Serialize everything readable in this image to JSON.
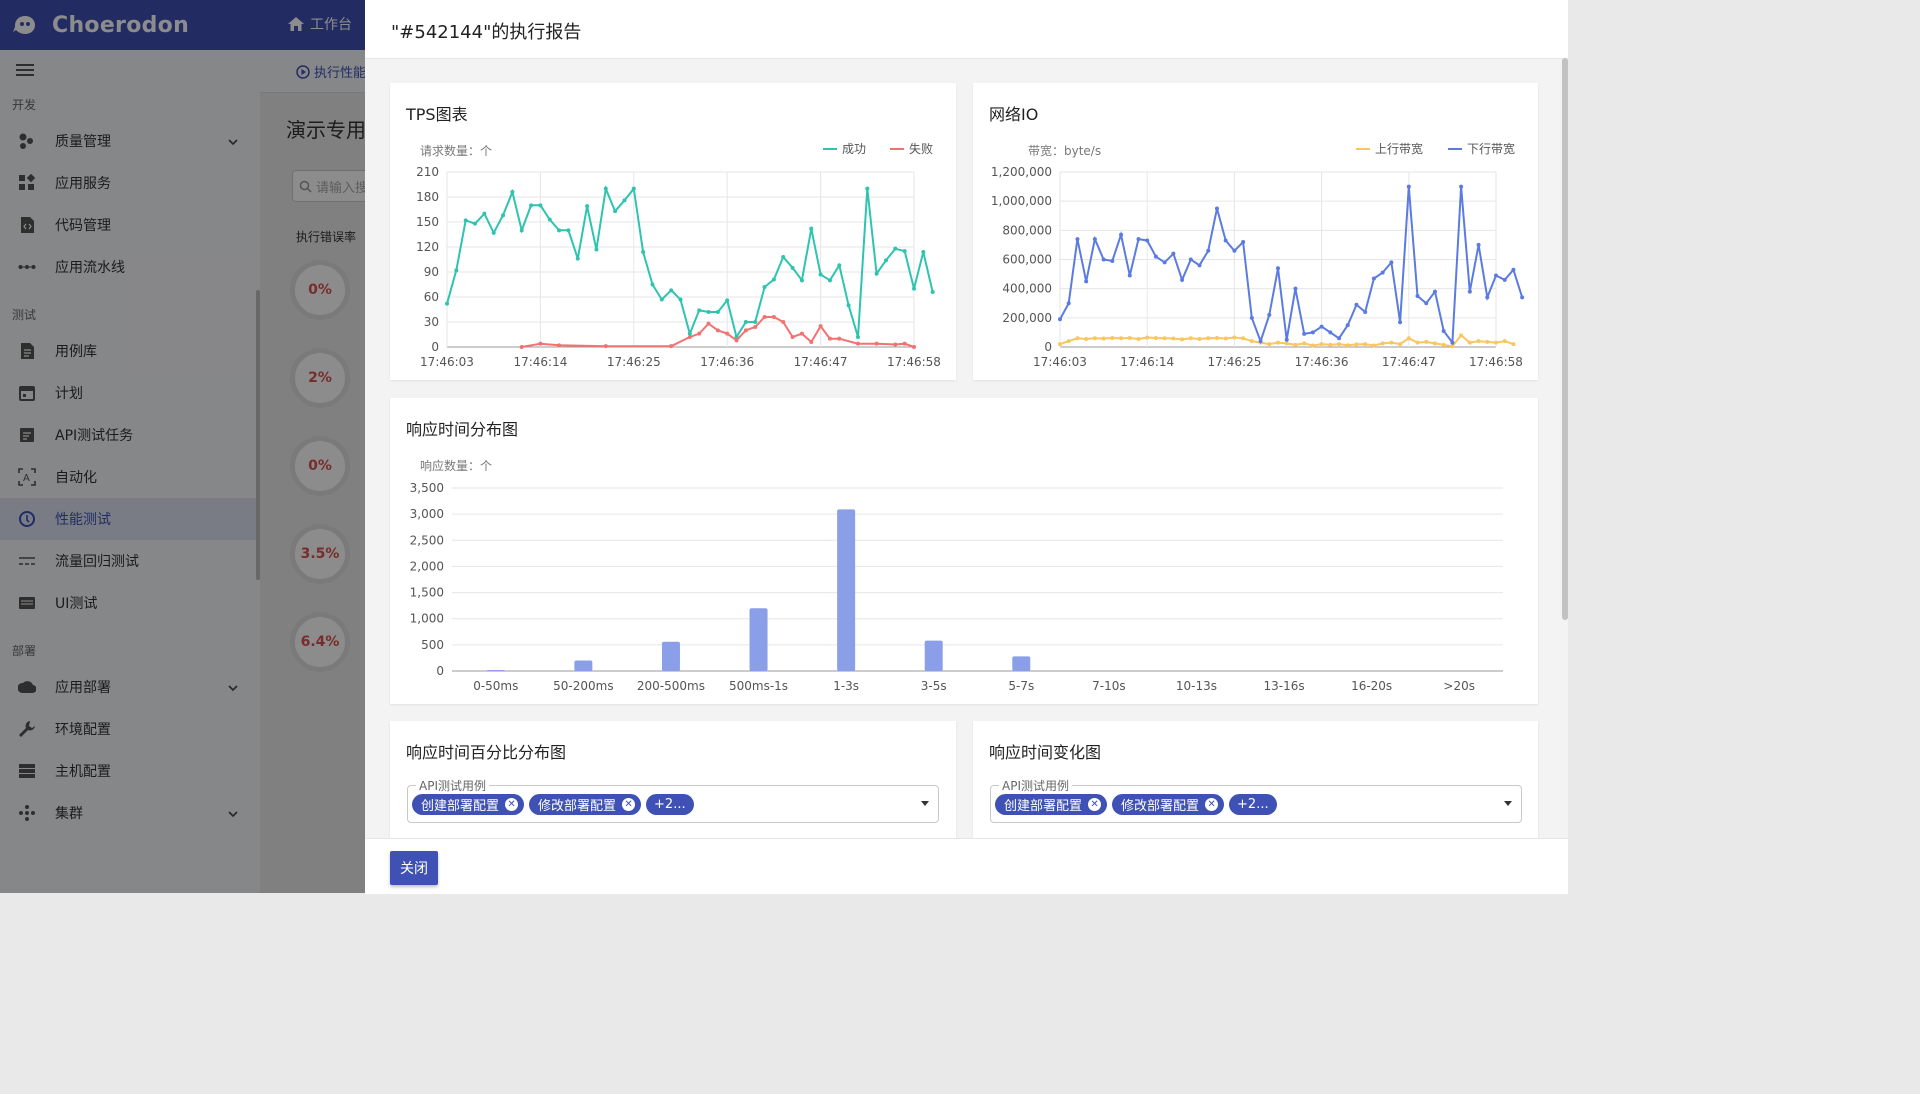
{
  "app": {
    "name": "Choerodon"
  },
  "topbar": {
    "home_label": "工作台"
  },
  "breadcrumb": {
    "label": "执行性能"
  },
  "sidebar": {
    "sections": [
      {
        "title": "开发",
        "items": [
          {
            "label": "质量管理",
            "icon": "quality-icon",
            "chevron": true
          },
          {
            "label": "应用服务",
            "icon": "app-service-icon"
          },
          {
            "label": "代码管理",
            "icon": "code-icon"
          },
          {
            "label": "应用流水线",
            "icon": "pipeline-icon"
          }
        ]
      },
      {
        "title": "测试",
        "items": [
          {
            "label": "用例库",
            "icon": "case-library-icon"
          },
          {
            "label": "计划",
            "icon": "calendar-icon"
          },
          {
            "label": "API测试任务",
            "icon": "api-task-icon"
          },
          {
            "label": "自动化",
            "icon": "automation-icon"
          },
          {
            "label": "性能测试",
            "icon": "performance-icon",
            "active": true
          },
          {
            "label": "流量回归测试",
            "icon": "traffic-icon"
          },
          {
            "label": "UI测试",
            "icon": "ui-test-icon"
          }
        ]
      },
      {
        "title": "部署",
        "items": [
          {
            "label": "应用部署",
            "icon": "deploy-icon",
            "chevron": true
          },
          {
            "label": "环境配置",
            "icon": "wrench-icon"
          },
          {
            "label": "主机配置",
            "icon": "host-icon"
          },
          {
            "label": "集群",
            "icon": "cluster-icon",
            "chevron": true
          }
        ]
      }
    ]
  },
  "background_page": {
    "title": "演示专用",
    "search_placeholder": "请输入搜",
    "column_label": "执行错误率",
    "rates": [
      "0%",
      "2%",
      "0%",
      "3.5%",
      "6.4%"
    ]
  },
  "modal": {
    "title": "\"#542144\"的执行报告",
    "close_label": "关闭"
  },
  "colors": {
    "primary": "#3f51b5",
    "success": "#2ec4b0",
    "fail": "#f27272",
    "up": "#fbc560",
    "down": "#5b7be0",
    "bar": "#8a9fe8"
  },
  "chart_data": [
    {
      "type": "line",
      "title": "TPS图表",
      "unit_label": "请求数量：个",
      "x_ticks": [
        "17:46:03",
        "17:46:14",
        "17:46:25",
        "17:46:36",
        "17:46:47",
        "17:46:58"
      ],
      "ylim": [
        0,
        210
      ],
      "y_ticks": [
        0,
        30,
        60,
        90,
        120,
        150,
        180,
        210
      ],
      "series": [
        {
          "name": "成功",
          "color": "#2ec4b0",
          "points": [
            [
              0,
              52
            ],
            [
              1,
              92
            ],
            [
              2,
              152
            ],
            [
              3,
              148
            ],
            [
              4,
              160
            ],
            [
              5,
              137
            ],
            [
              6,
              158
            ],
            [
              7,
              186
            ],
            [
              8,
              140
            ],
            [
              9,
              170
            ],
            [
              10,
              170
            ],
            [
              11,
              153
            ],
            [
              12,
              140
            ],
            [
              13,
              140
            ],
            [
              14,
              106
            ],
            [
              15,
              169
            ],
            [
              16,
              117
            ],
            [
              17,
              190
            ],
            [
              18,
              163
            ],
            [
              19,
              176
            ],
            [
              20,
              190
            ],
            [
              21,
              114
            ],
            [
              22,
              75
            ],
            [
              23,
              57
            ],
            [
              24,
              68
            ],
            [
              25,
              57
            ],
            [
              26,
              16
            ],
            [
              27,
              44
            ],
            [
              28,
              42
            ],
            [
              29,
              42
            ],
            [
              30,
              56
            ],
            [
              31,
              12
            ],
            [
              32,
              30
            ],
            [
              33,
              30
            ],
            [
              34,
              72
            ],
            [
              35,
              81
            ],
            [
              36,
              108
            ],
            [
              37,
              95
            ],
            [
              38,
              80
            ],
            [
              39,
              142
            ],
            [
              40,
              87
            ],
            [
              41,
              80
            ],
            [
              42,
              98
            ],
            [
              43,
              50
            ],
            [
              44,
              12
            ],
            [
              45,
              190
            ],
            [
              46,
              88
            ],
            [
              47,
              104
            ],
            [
              48,
              118
            ],
            [
              49,
              115
            ],
            [
              50,
              70
            ],
            [
              51,
              114
            ],
            [
              52,
              66
            ]
          ]
        },
        {
          "name": "失败",
          "color": "#f27272",
          "points": [
            [
              8,
              0
            ],
            [
              10,
              4
            ],
            [
              12,
              2
            ],
            [
              17,
              1
            ],
            [
              24,
              1
            ],
            [
              26,
              12
            ],
            [
              27,
              16
            ],
            [
              28,
              28
            ],
            [
              29,
              20
            ],
            [
              30,
              16
            ],
            [
              31,
              8
            ],
            [
              32,
              20
            ],
            [
              33,
              24
            ],
            [
              34,
              36
            ],
            [
              35,
              36
            ],
            [
              36,
              30
            ],
            [
              37,
              12
            ],
            [
              38,
              16
            ],
            [
              39,
              6
            ],
            [
              40,
              25
            ],
            [
              41,
              10
            ],
            [
              42,
              10
            ],
            [
              44,
              4
            ],
            [
              46,
              4
            ],
            [
              48,
              3
            ],
            [
              49,
              4
            ],
            [
              50,
              0
            ]
          ]
        }
      ]
    },
    {
      "type": "line",
      "title": "网络IO",
      "unit_label": "带宽：byte/s",
      "x_ticks": [
        "17:46:03",
        "17:46:14",
        "17:46:25",
        "17:46:36",
        "17:46:47",
        "17:46:58"
      ],
      "ylim": [
        0,
        1200000
      ],
      "y_ticks": [
        "0",
        "200,000",
        "400,000",
        "600,000",
        "800,000",
        "1,000,000",
        "1,200,000"
      ],
      "series": [
        {
          "name": "上行带宽",
          "color": "#fbc560",
          "points": [
            [
              0,
              20000
            ],
            [
              1,
              40000
            ],
            [
              2,
              60000
            ],
            [
              3,
              55000
            ],
            [
              4,
              60000
            ],
            [
              5,
              58000
            ],
            [
              6,
              62000
            ],
            [
              7,
              60000
            ],
            [
              8,
              62000
            ],
            [
              9,
              55000
            ],
            [
              10,
              65000
            ],
            [
              11,
              62000
            ],
            [
              12,
              60000
            ],
            [
              13,
              58000
            ],
            [
              14,
              52000
            ],
            [
              15,
              60000
            ],
            [
              16,
              55000
            ],
            [
              17,
              60000
            ],
            [
              18,
              62000
            ],
            [
              19,
              58000
            ],
            [
              20,
              65000
            ],
            [
              21,
              60000
            ],
            [
              22,
              40000
            ],
            [
              23,
              30000
            ],
            [
              24,
              20000
            ],
            [
              25,
              30000
            ],
            [
              26,
              25000
            ],
            [
              27,
              15000
            ],
            [
              28,
              25000
            ],
            [
              29,
              10000
            ],
            [
              30,
              20000
            ],
            [
              31,
              15000
            ],
            [
              32,
              20000
            ],
            [
              33,
              12000
            ],
            [
              34,
              18000
            ],
            [
              35,
              20000
            ],
            [
              36,
              10000
            ],
            [
              37,
              25000
            ],
            [
              38,
              30000
            ],
            [
              39,
              20000
            ],
            [
              40,
              60000
            ],
            [
              41,
              30000
            ],
            [
              42,
              35000
            ],
            [
              43,
              25000
            ],
            [
              44,
              15000
            ],
            [
              45,
              5000
            ],
            [
              46,
              80000
            ],
            [
              47,
              30000
            ],
            [
              48,
              40000
            ],
            [
              49,
              35000
            ],
            [
              50,
              30000
            ],
            [
              51,
              40000
            ],
            [
              52,
              20000
            ]
          ]
        },
        {
          "name": "下行带宽",
          "color": "#5b7be0",
          "points": [
            [
              0,
              190000
            ],
            [
              1,
              300000
            ],
            [
              2,
              740000
            ],
            [
              3,
              450000
            ],
            [
              4,
              740000
            ],
            [
              5,
              600000
            ],
            [
              6,
              590000
            ],
            [
              7,
              770000
            ],
            [
              8,
              490000
            ],
            [
              9,
              740000
            ],
            [
              10,
              730000
            ],
            [
              11,
              620000
            ],
            [
              12,
              580000
            ],
            [
              13,
              640000
            ],
            [
              14,
              460000
            ],
            [
              15,
              600000
            ],
            [
              16,
              560000
            ],
            [
              17,
              660000
            ],
            [
              18,
              950000
            ],
            [
              19,
              730000
            ],
            [
              20,
              660000
            ],
            [
              21,
              720000
            ],
            [
              22,
              200000
            ],
            [
              23,
              40000
            ],
            [
              24,
              220000
            ],
            [
              25,
              540000
            ],
            [
              26,
              50000
            ],
            [
              27,
              400000
            ],
            [
              28,
              90000
            ],
            [
              29,
              100000
            ],
            [
              30,
              140000
            ],
            [
              31,
              100000
            ],
            [
              32,
              60000
            ],
            [
              33,
              150000
            ],
            [
              34,
              290000
            ],
            [
              35,
              240000
            ],
            [
              36,
              470000
            ],
            [
              37,
              510000
            ],
            [
              38,
              580000
            ],
            [
              39,
              170000
            ],
            [
              40,
              1100000
            ],
            [
              41,
              350000
            ],
            [
              42,
              300000
            ],
            [
              43,
              380000
            ],
            [
              44,
              110000
            ],
            [
              45,
              30000
            ],
            [
              46,
              1100000
            ],
            [
              47,
              380000
            ],
            [
              48,
              700000
            ],
            [
              49,
              340000
            ],
            [
              50,
              490000
            ],
            [
              51,
              460000
            ],
            [
              52,
              530000
            ],
            [
              53,
              340000
            ]
          ]
        }
      ]
    },
    {
      "type": "bar",
      "title": "响应时间分布图",
      "unit_label": "响应数量：个",
      "categories": [
        "0-50ms",
        "50-200ms",
        "200-500ms",
        "500ms-1s",
        "1-3s",
        "3-5s",
        "5-7s",
        "7-10s",
        "10-13s",
        "13-16s",
        "16-20s",
        ">20s"
      ],
      "values": [
        20,
        200,
        560,
        1200,
        3090,
        580,
        280,
        0,
        0,
        0,
        0,
        0
      ],
      "ylim": [
        0,
        3500
      ],
      "y_ticks": [
        "0",
        "500",
        "1,000",
        "1,500",
        "2,000",
        "2,500",
        "3,000",
        "3,500"
      ],
      "color": "#8a9fe8"
    }
  ],
  "percentile_card": {
    "title": "响应时间百分比分布图",
    "select": {
      "label": "API测试用例",
      "chips": [
        "创建部署配置",
        "修改部署配置"
      ],
      "more": "+2..."
    }
  },
  "trend_card": {
    "title": "响应时间变化图",
    "select": {
      "label": "API测试用例",
      "chips": [
        "创建部署配置",
        "修改部署配置"
      ],
      "more": "+2..."
    }
  }
}
